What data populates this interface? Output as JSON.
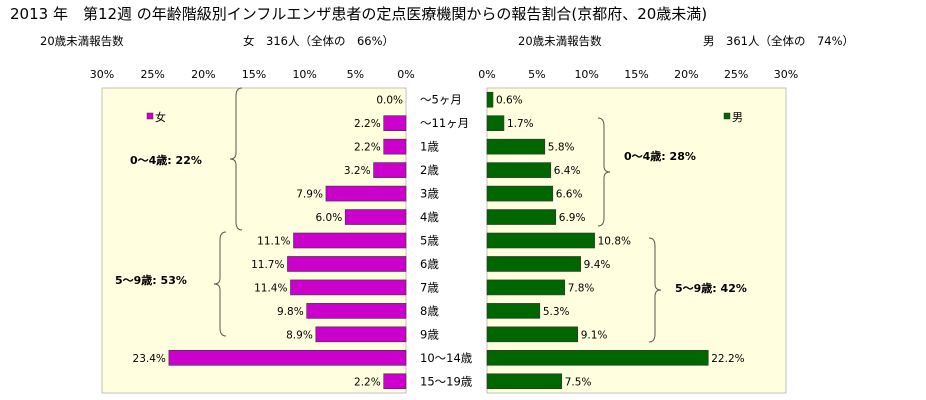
{
  "title": "2013 年　第12週 の年齢階級別インフルエンザ患者の定点医療機関からの報告割合(京都府、20歳未満)",
  "left_header": {
    "label": "20歳未満報告数",
    "summary": "女　316人（全体の　66%）"
  },
  "right_header": {
    "label": "20歳未満報告数",
    "summary": "男　361人（全体の　74%）"
  },
  "colors": {
    "female": "#cc00cc",
    "male": "#006600",
    "plot_bg": "#ffffe0"
  },
  "chart_data": {
    "type": "bar",
    "categories": [
      "～5ヶ月",
      "～11ヶ月",
      "1歳",
      "2歳",
      "3歳",
      "4歳",
      "5歳",
      "6歳",
      "7歳",
      "8歳",
      "9歳",
      "10～14歳",
      "15～19歳"
    ],
    "series": [
      {
        "name": "女",
        "values": [
          0.0,
          2.2,
          2.2,
          3.2,
          7.9,
          6.0,
          11.1,
          11.7,
          11.4,
          9.8,
          8.9,
          23.4,
          2.2
        ],
        "labels": [
          "0.0%",
          "2.2%",
          "2.2%",
          "3.2%",
          "7.9%",
          "6.0%",
          "11.1%",
          "11.7%",
          "11.4%",
          "9.8%",
          "8.9%",
          "23.4%",
          "2.2%"
        ]
      },
      {
        "name": "男",
        "values": [
          0.6,
          1.7,
          5.8,
          6.4,
          6.6,
          6.9,
          10.8,
          9.4,
          7.8,
          5.3,
          9.1,
          22.2,
          7.5
        ],
        "labels": [
          "0.6%",
          "1.7%",
          "5.8%",
          "6.4%",
          "6.6%",
          "6.9%",
          "10.8%",
          "9.4%",
          "7.8%",
          "5.3%",
          "9.1%",
          "22.2%",
          "7.5%"
        ]
      }
    ],
    "ticks": [
      "30%",
      "25%",
      "20%",
      "15%",
      "10%",
      "5%",
      "0%"
    ],
    "ticks_right": [
      "0%",
      "5%",
      "10%",
      "15%",
      "20%",
      "25%",
      "30%"
    ],
    "xlim": [
      0,
      30
    ],
    "annotations": {
      "female": [
        {
          "label": "0～4歳:  22%"
        },
        {
          "label": "5～9歳: 53%"
        }
      ],
      "male": [
        {
          "label": "0～4歳:  28%"
        },
        {
          "label": "5～9歳: 42%"
        }
      ]
    }
  }
}
